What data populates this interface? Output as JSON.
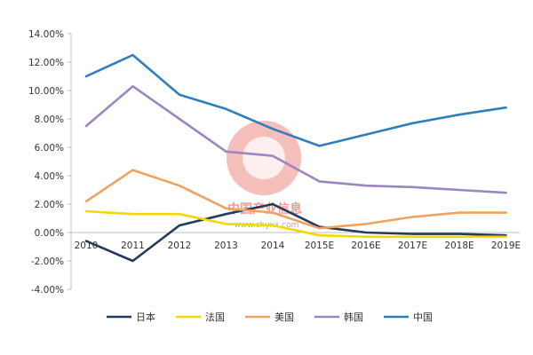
{
  "chart_data": {
    "type": "line",
    "categories": [
      "2010",
      "2011",
      "2012",
      "2013",
      "2014",
      "2015E",
      "2016E",
      "2017E",
      "2018E",
      "2019E"
    ],
    "ylim": [
      -4,
      14
    ],
    "yticks": [
      -4,
      -2,
      0,
      2,
      4,
      6,
      8,
      10,
      12,
      14
    ],
    "ytick_labels": [
      "-4.00%",
      "-2.00%",
      "0.00%",
      "2.00%",
      "4.00%",
      "6.00%",
      "8.00%",
      "10.00%",
      "12.00%",
      "14.00%"
    ],
    "grid": false,
    "legend_position": "bottom",
    "series": [
      {
        "name": "日本",
        "color": "#243b5c",
        "values": [
          -0.6,
          -2.0,
          0.5,
          1.3,
          2.0,
          0.4,
          0.0,
          -0.1,
          -0.1,
          -0.2
        ]
      },
      {
        "name": "法国",
        "color": "#f5d800",
        "values": [
          1.5,
          1.3,
          1.3,
          0.6,
          0.5,
          -0.2,
          -0.3,
          -0.3,
          -0.3,
          -0.3
        ]
      },
      {
        "name": "美国",
        "color": "#f0a35e",
        "values": [
          2.2,
          4.4,
          3.3,
          1.7,
          1.4,
          0.3,
          0.6,
          1.1,
          1.4,
          1.4
        ]
      },
      {
        "name": "韩国",
        "color": "#9b86c1",
        "values": [
          7.5,
          10.3,
          8.0,
          5.7,
          5.4,
          3.6,
          3.3,
          3.2,
          3.0,
          2.8
        ]
      },
      {
        "name": "中国",
        "color": "#2f7fbd",
        "values": [
          11.0,
          12.5,
          9.7,
          8.7,
          7.3,
          6.1,
          6.9,
          7.7,
          8.3,
          8.8
        ]
      }
    ]
  },
  "watermark": {
    "text": "中国产业信息",
    "url": "www.chyxx.com"
  }
}
